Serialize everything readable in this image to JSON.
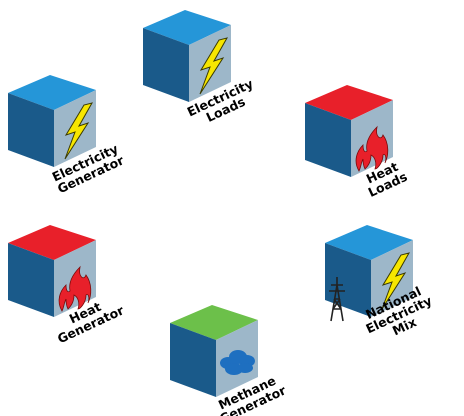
{
  "nodes": [
    {
      "label_lines": [
        "Electricity",
        "Loads"
      ]
    },
    {
      "label_lines": [
        "Electricity",
        "Generator"
      ]
    },
    {
      "label_lines": [
        "Heat",
        "Loads"
      ]
    },
    {
      "label_lines": [
        "Heat",
        "Generator"
      ]
    },
    {
      "label_lines": [
        "National",
        "Electricity",
        "Mix"
      ]
    },
    {
      "label_lines": [
        "Methane",
        "Generator"
      ]
    }
  ]
}
